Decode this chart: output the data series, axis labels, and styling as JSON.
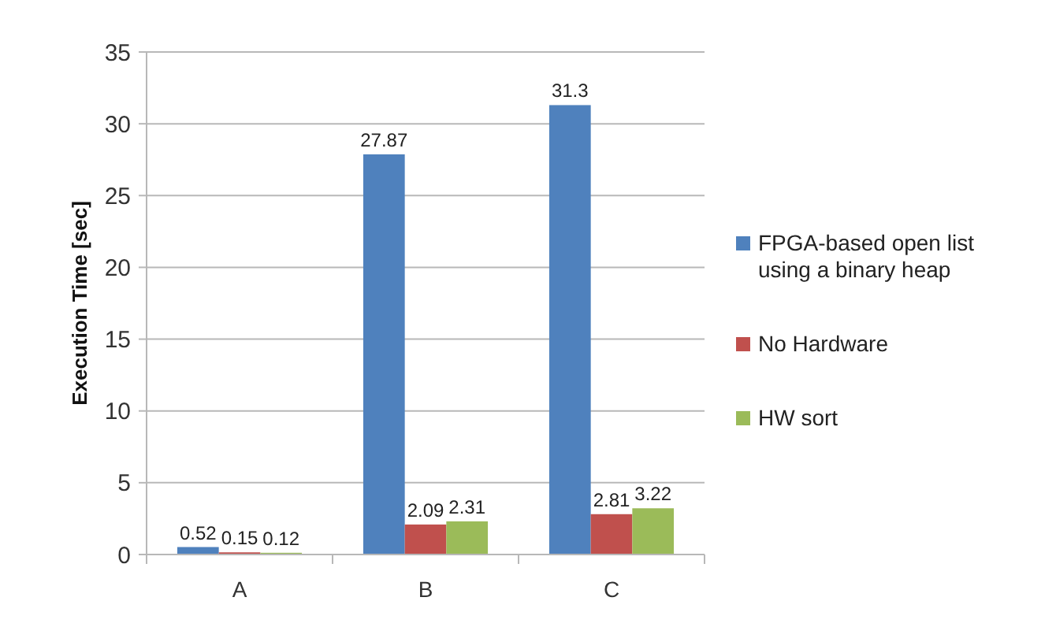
{
  "chart_data": {
    "type": "bar",
    "ylabel": "Execution Time [sec]",
    "categories": [
      "A",
      "B",
      "C"
    ],
    "series": [
      {
        "name": "FPGA-based open list using a binary heap",
        "color": "#4f81bd",
        "values": [
          0.52,
          27.87,
          31.3
        ]
      },
      {
        "name": "No Hardware",
        "color": "#c0504d",
        "values": [
          0.15,
          2.09,
          2.81
        ]
      },
      {
        "name": "HW sort",
        "color": "#9bbb59",
        "values": [
          0.12,
          2.31,
          3.22
        ]
      }
    ],
    "ylim": [
      0,
      35
    ],
    "yticks": [
      0,
      5,
      10,
      15,
      20,
      25,
      30,
      35
    ],
    "grid": "y",
    "legend": "right",
    "data_labels": true
  }
}
